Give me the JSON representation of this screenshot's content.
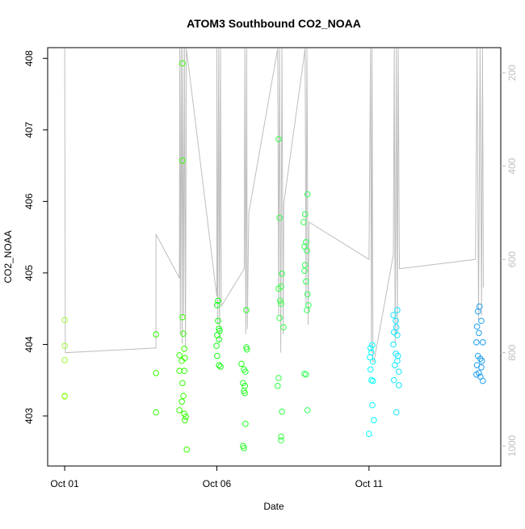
{
  "chart_data": {
    "type": "scatter",
    "title": "ATOM3 Southbound CO2_NOAA",
    "x_label": "Date",
    "y_label": "CO2_NOAA",
    "xlim": [
      0.44,
      15.33
    ],
    "xticks": [
      {
        "value": 1,
        "label": "Oct 01"
      },
      {
        "value": 6,
        "label": "Oct 06"
      },
      {
        "value": 11,
        "label": "Oct 11"
      }
    ],
    "ylim": [
      402.3,
      408.15
    ],
    "yticks": [
      403,
      404,
      405,
      406,
      407,
      408
    ],
    "y2lim": [
      1043,
      146
    ],
    "y2ticks": [
      200,
      400,
      600,
      800,
      1000
    ],
    "series": [
      {
        "type": "scatter",
        "color": "#99ff33",
        "x": [
          1.0,
          1.0,
          1.0,
          1.0,
          1.0
        ],
        "values": [
          404.34,
          403.98,
          403.78,
          403.28,
          403.27
        ]
      },
      {
        "type": "scatter",
        "color": "#33ff00",
        "x": [
          4.0,
          4.0,
          4.0,
          4.87,
          4.87,
          4.87,
          4.9,
          4.93,
          4.77,
          4.85,
          4.95,
          4.77,
          4.93,
          4.87,
          4.9,
          4.85,
          4.77,
          4.93,
          4.98,
          4.95,
          5.01
        ],
        "values": [
          404.14,
          403.6,
          403.05,
          407.93,
          406.57,
          404.38,
          404.15,
          403.94,
          403.85,
          403.77,
          403.81,
          403.63,
          403.63,
          403.46,
          403.28,
          403.2,
          403.08,
          403.03,
          402.99,
          402.94,
          402.53
        ]
      },
      {
        "type": "scatter",
        "color": "#11ff11",
        "x": [
          6.04,
          6.01,
          6.04,
          6.07,
          6.09,
          6.01,
          6.07,
          5.99,
          6.01,
          6.07,
          6.12
        ],
        "values": [
          404.61,
          404.55,
          404.33,
          404.22,
          404.19,
          404.13,
          404.07,
          403.98,
          403.84,
          403.71,
          403.69
        ]
      },
      {
        "type": "scatter",
        "color": "#22ff22",
        "x": [
          6.97,
          6.97,
          6.99,
          6.81,
          6.89,
          6.94,
          6.86,
          6.92,
          6.89,
          6.92,
          6.94,
          6.86,
          6.89
        ],
        "values": [
          404.48,
          403.96,
          403.93,
          403.73,
          403.65,
          403.62,
          403.46,
          403.42,
          403.35,
          403.32,
          402.89,
          402.58,
          402.55
        ]
      },
      {
        "type": "scatter",
        "color": "#33ff44",
        "x": [
          8.03,
          8.06,
          8.14,
          8.11,
          8.03,
          8.08,
          8.11,
          8.06,
          8.19,
          8.03,
          8.0,
          8.14,
          8.11,
          8.11
        ],
        "values": [
          406.87,
          405.77,
          404.99,
          404.81,
          404.78,
          404.61,
          404.57,
          404.37,
          404.24,
          403.53,
          403.42,
          403.06,
          402.71,
          402.66
        ]
      },
      {
        "type": "scatter",
        "color": "#33ff55",
        "x": [
          8.98,
          8.9,
          8.85,
          8.93,
          8.88,
          8.96,
          8.9,
          8.88,
          8.93,
          8.98,
          9.01,
          8.96,
          8.88,
          8.93,
          8.98
        ],
        "values": [
          406.1,
          405.82,
          405.71,
          405.43,
          405.37,
          405.31,
          405.11,
          405.03,
          404.88,
          404.7,
          404.55,
          404.48,
          403.59,
          403.58,
          403.08
        ]
      },
      {
        "type": "scatter",
        "color": "#00ffff",
        "x": [
          11.11,
          11.05,
          11.08,
          11.03,
          11.13,
          11.05,
          11.08,
          11.13,
          11.11,
          11.16,
          11.0
        ],
        "values": [
          403.99,
          403.95,
          403.89,
          403.82,
          403.76,
          403.65,
          403.5,
          403.49,
          403.15,
          402.94,
          402.75
        ]
      },
      {
        "type": "scatter",
        "color": "#11e6ff",
        "x": [
          11.93,
          11.8,
          11.88,
          11.9,
          11.82,
          11.93,
          11.8,
          11.88,
          11.95,
          11.93,
          11.85,
          11.98,
          11.82,
          11.98,
          11.9
        ],
        "values": [
          404.48,
          404.41,
          404.33,
          404.24,
          404.17,
          404.13,
          404.0,
          403.87,
          403.84,
          403.77,
          403.71,
          403.62,
          403.5,
          403.43,
          403.05
        ]
      },
      {
        "type": "scatter",
        "color": "#1e9ff0",
        "x": [
          14.63,
          14.58,
          14.69,
          14.55,
          14.61,
          14.53,
          14.74,
          14.58,
          14.66,
          14.71,
          14.55,
          14.69,
          14.61,
          14.53,
          14.66,
          14.74
        ],
        "values": [
          404.53,
          404.46,
          404.33,
          404.25,
          404.16,
          404.03,
          404.03,
          403.84,
          403.8,
          403.77,
          403.71,
          403.68,
          403.6,
          403.58,
          403.55,
          403.49
        ]
      },
      {
        "type": "line",
        "axis": "y2",
        "color": "#bebebe",
        "x": [
          1.0,
          1.02,
          4.0,
          4.0,
          4.77,
          4.78,
          4.8,
          4.83,
          4.86,
          4.88,
          4.91,
          4.94,
          4.97,
          5.0,
          6.0,
          6.0,
          6.03,
          6.06,
          6.09,
          6.12,
          6.15,
          6.9,
          6.92,
          6.95,
          6.98,
          7.0,
          7.05,
          8.0,
          8.03,
          8.06,
          8.1,
          8.14,
          8.18,
          8.2,
          8.9,
          8.93,
          8.96,
          9.0,
          9.03,
          11.0,
          11.05,
          11.08,
          11.1,
          11.13,
          11.16,
          11.8,
          11.83,
          11.86,
          11.9,
          11.93,
          11.96,
          12.0,
          14.5,
          14.55,
          14.6,
          14.65,
          14.7,
          14.73,
          14.76
        ],
        "values": [
          148,
          800,
          790,
          546,
          640,
          148,
          760,
          148,
          780,
          148,
          720,
          148,
          790,
          148,
          680,
          148,
          740,
          148,
          780,
          148,
          700,
          620,
          148,
          760,
          148,
          750,
          500,
          148,
          720,
          148,
          800,
          148,
          760,
          480,
          148,
          700,
          148,
          740,
          520,
          600,
          148,
          800,
          148,
          820,
          820,
          590,
          148,
          780,
          148,
          760,
          148,
          620,
          600,
          148,
          730,
          148,
          720,
          148,
          660
        ]
      }
    ]
  }
}
